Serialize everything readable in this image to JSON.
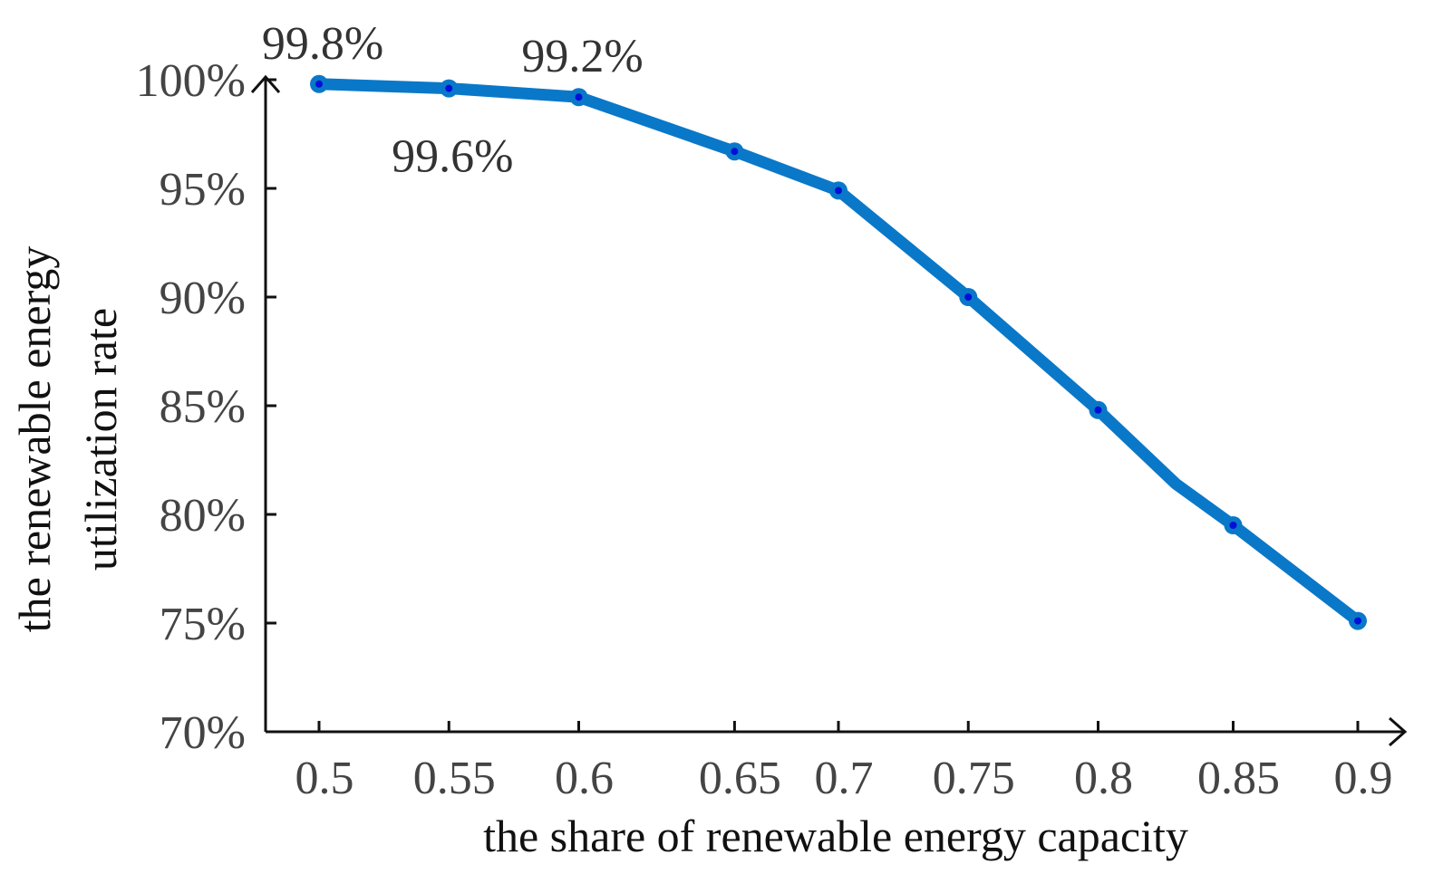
{
  "chart_data": {
    "type": "line",
    "title": "",
    "xlabel": "the share of renewable energy capacity",
    "ylabel_lines": [
      "the renewable energy",
      "utilization rate"
    ],
    "x": [
      0.5,
      0.55,
      0.6,
      0.65,
      0.7,
      0.75,
      0.8,
      0.85,
      0.9
    ],
    "x_tick_labels": [
      "0.5",
      "0.55",
      "0.6",
      "0.65",
      "0.7",
      "0.75",
      "0.8",
      "0.85",
      "0.9"
    ],
    "x_positions": [
      0.5,
      0.55,
      0.6,
      0.66,
      0.7,
      0.75,
      0.8,
      0.852,
      0.9
    ],
    "y_ticks": [
      70,
      75,
      80,
      85,
      90,
      95,
      100
    ],
    "y_tick_labels": [
      "70%",
      "75%",
      "80%",
      "85%",
      "90%",
      "95%",
      "100%"
    ],
    "ylim": [
      70,
      100
    ],
    "series": [
      {
        "name": "utilization rate",
        "line_x": [
          0.5,
          0.55,
          0.6,
          0.66,
          0.7,
          0.75,
          0.8,
          0.83,
          0.852,
          0.9
        ],
        "line_y": [
          99.8,
          99.6,
          99.2,
          96.7,
          94.9,
          90.0,
          84.8,
          81.4,
          79.5,
          75.1
        ],
        "marker_x": [
          0.5,
          0.55,
          0.6,
          0.66,
          0.7,
          0.75,
          0.8,
          0.852,
          0.9
        ],
        "marker_y": [
          99.8,
          99.6,
          99.2,
          96.7,
          94.9,
          90.0,
          84.8,
          79.5,
          75.1
        ]
      }
    ],
    "annotations": [
      {
        "text": "99.8%",
        "x": 0.5,
        "y": 99.8,
        "position": "above"
      },
      {
        "text": "99.6%",
        "x": 0.55,
        "y": 99.6,
        "position": "below"
      },
      {
        "text": "99.2%",
        "x": 0.6,
        "y": 99.2,
        "position": "above"
      }
    ],
    "colors": {
      "line": "#0a78c8",
      "marker_center": "#0010d8",
      "axis": "#111111",
      "tick_text": "#444444"
    }
  }
}
